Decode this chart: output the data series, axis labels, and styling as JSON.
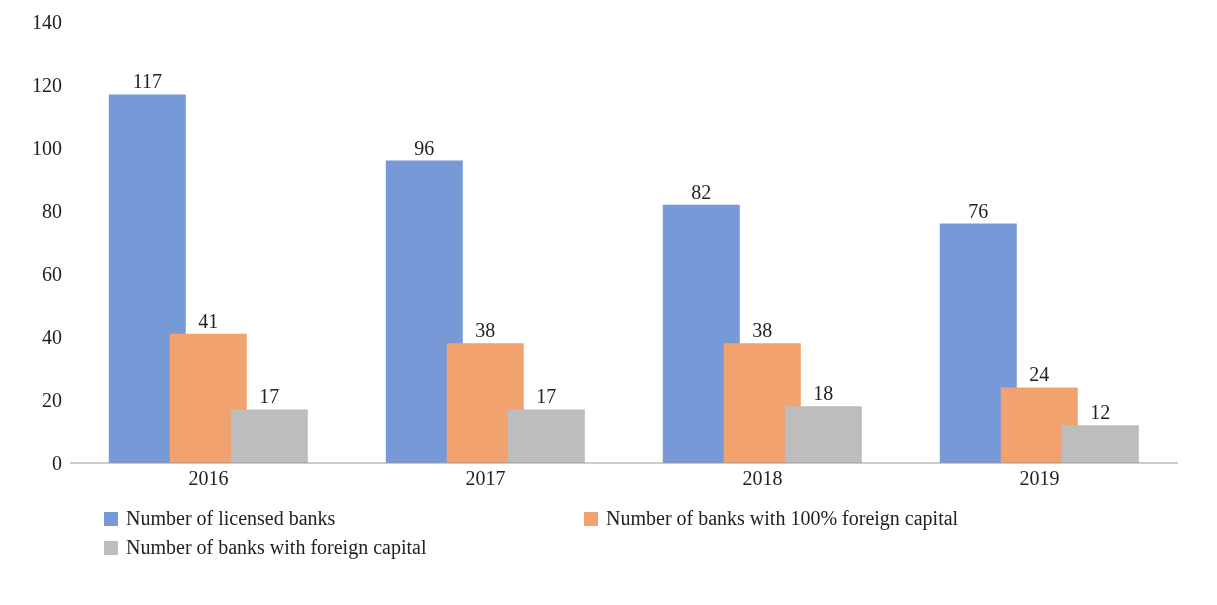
{
  "chart_data": {
    "type": "bar",
    "categories": [
      "2016",
      "2017",
      "2018",
      "2019"
    ],
    "series": [
      {
        "name": "Number of licensed banks",
        "color": "#7899d8",
        "values": [
          117,
          96,
          82,
          76
        ]
      },
      {
        "name": "Number of banks with 100% foreign capital",
        "color": "#f2a26e",
        "values": [
          41,
          38,
          38,
          24
        ]
      },
      {
        "name": "Number of banks with foreign capital",
        "color": "#bdbdbd",
        "values": [
          17,
          17,
          18,
          12
        ]
      }
    ],
    "ylim": [
      0,
      140
    ],
    "yticks": [
      0,
      20,
      40,
      60,
      80,
      100,
      120,
      140
    ],
    "grid": false,
    "data_labels": true,
    "legend": "bottom"
  }
}
